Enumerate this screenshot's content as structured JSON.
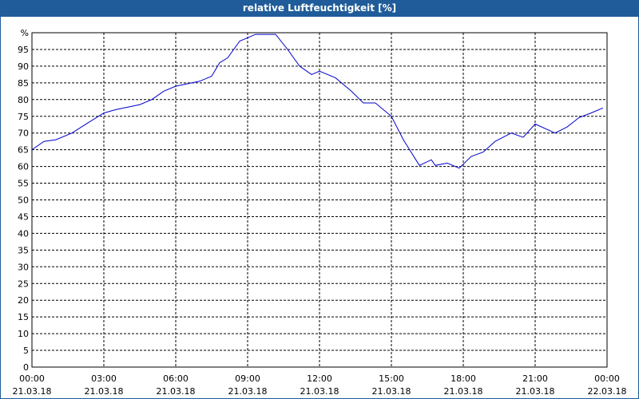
{
  "chart_data": {
    "type": "line",
    "title": "relative Luftfeuchtigkeit [%]",
    "x": [
      0,
      0.5,
      1,
      1.67,
      2.33,
      3,
      3.5,
      4.5,
      5,
      5.5,
      6,
      7,
      7.5,
      7.83,
      8.17,
      8.67,
      9.33,
      10.17,
      10.67,
      11.17,
      11.67,
      12,
      12.67,
      13.33,
      13.83,
      14.33,
      15,
      15.5,
      16.17,
      16.67,
      16.83,
      17.33,
      17.83,
      18.33,
      18.83,
      19.33,
      20,
      20.5,
      21,
      21.83,
      22.33,
      22.83,
      23.33,
      23.83
    ],
    "series": [
      {
        "color": "#0000cc",
        "values": [
          65,
          67.5,
          68,
          70,
          73,
          76,
          77,
          78.5,
          80,
          82.5,
          84,
          85.5,
          87,
          91,
          92.5,
          97.5,
          99.5,
          99.5,
          95,
          90,
          87.5,
          88.5,
          86.5,
          82.5,
          79,
          79,
          75,
          68,
          60.3,
          62,
          60.3,
          61,
          59.5,
          63,
          64.3,
          67.5,
          70,
          68.7,
          72.7,
          70,
          71.8,
          74.6,
          76,
          77.5
        ]
      }
    ],
    "xlim": [
      0,
      24
    ],
    "xticks": [
      {
        "value": 0,
        "label": "00:00"
      },
      {
        "value": 3,
        "label": "03:00"
      },
      {
        "value": 6,
        "label": "06:00"
      },
      {
        "value": 9,
        "label": "09:00"
      },
      {
        "value": 12,
        "label": "12:00"
      },
      {
        "value": 15,
        "label": "15:00"
      },
      {
        "value": 18,
        "label": "18:00"
      },
      {
        "value": 21,
        "label": "21:00"
      },
      {
        "value": 24,
        "label": "00:00"
      }
    ],
    "xtick_dates": [
      "21.03.18",
      "21.03.18",
      "21.03.18",
      "21.03.18",
      "21.03.18",
      "21.03.18",
      "21.03.18",
      "21.03.18",
      "22.03.18"
    ],
    "ylim": [
      0,
      100
    ],
    "yticks": [
      0,
      5,
      10,
      15,
      20,
      25,
      30,
      35,
      40,
      45,
      50,
      55,
      60,
      65,
      70,
      75,
      80,
      85,
      90,
      95,
      {
        "value": 100,
        "label": "%"
      }
    ],
    "grid": true
  }
}
